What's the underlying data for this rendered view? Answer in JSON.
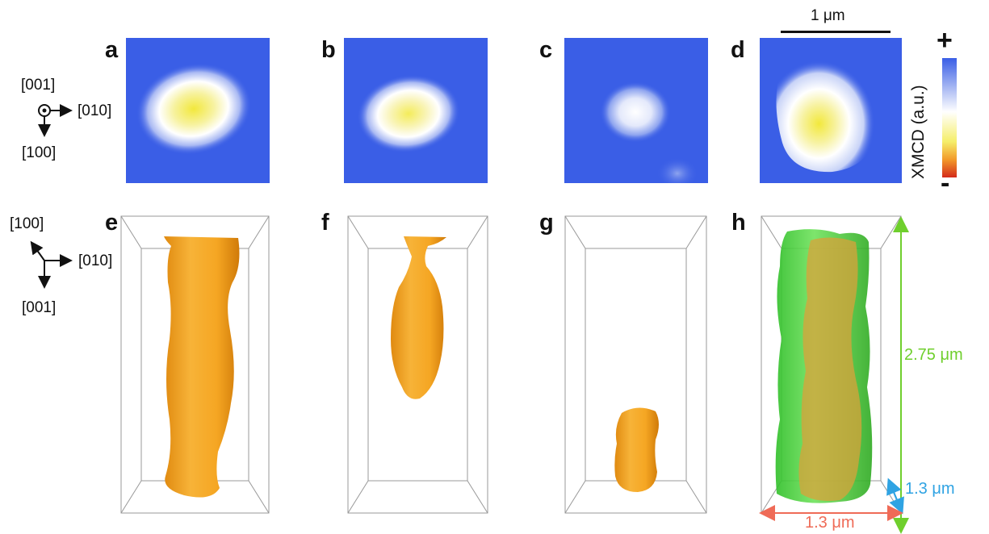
{
  "panels": {
    "a": "a",
    "b": "b",
    "c": "c",
    "d": "d",
    "e": "e",
    "f": "f",
    "g": "g",
    "h": "h"
  },
  "axes_top": {
    "out_of_plane": "[001]",
    "right": "[010]",
    "down": "[100]"
  },
  "axes_bottom": {
    "diag": "[100]",
    "right": "[010]",
    "down": "[001]"
  },
  "scalebar": {
    "label": "1 μm"
  },
  "colorbar": {
    "label": "XMCD (a.u.)",
    "plus": "+",
    "minus": "-"
  },
  "dimensions": {
    "height": "2.75 μm",
    "depth": "1.3 μm",
    "width": "1.3 μm"
  },
  "colors": {
    "map_background": "#3a5ee6",
    "map_core": "#f2e83c",
    "domain_surface": "#f5a623",
    "overlay_green": "#35d12e",
    "height_arrow": "#6fcf2d",
    "depth_arrow": "#2fa3e3",
    "width_arrow": "#ef6b57"
  }
}
